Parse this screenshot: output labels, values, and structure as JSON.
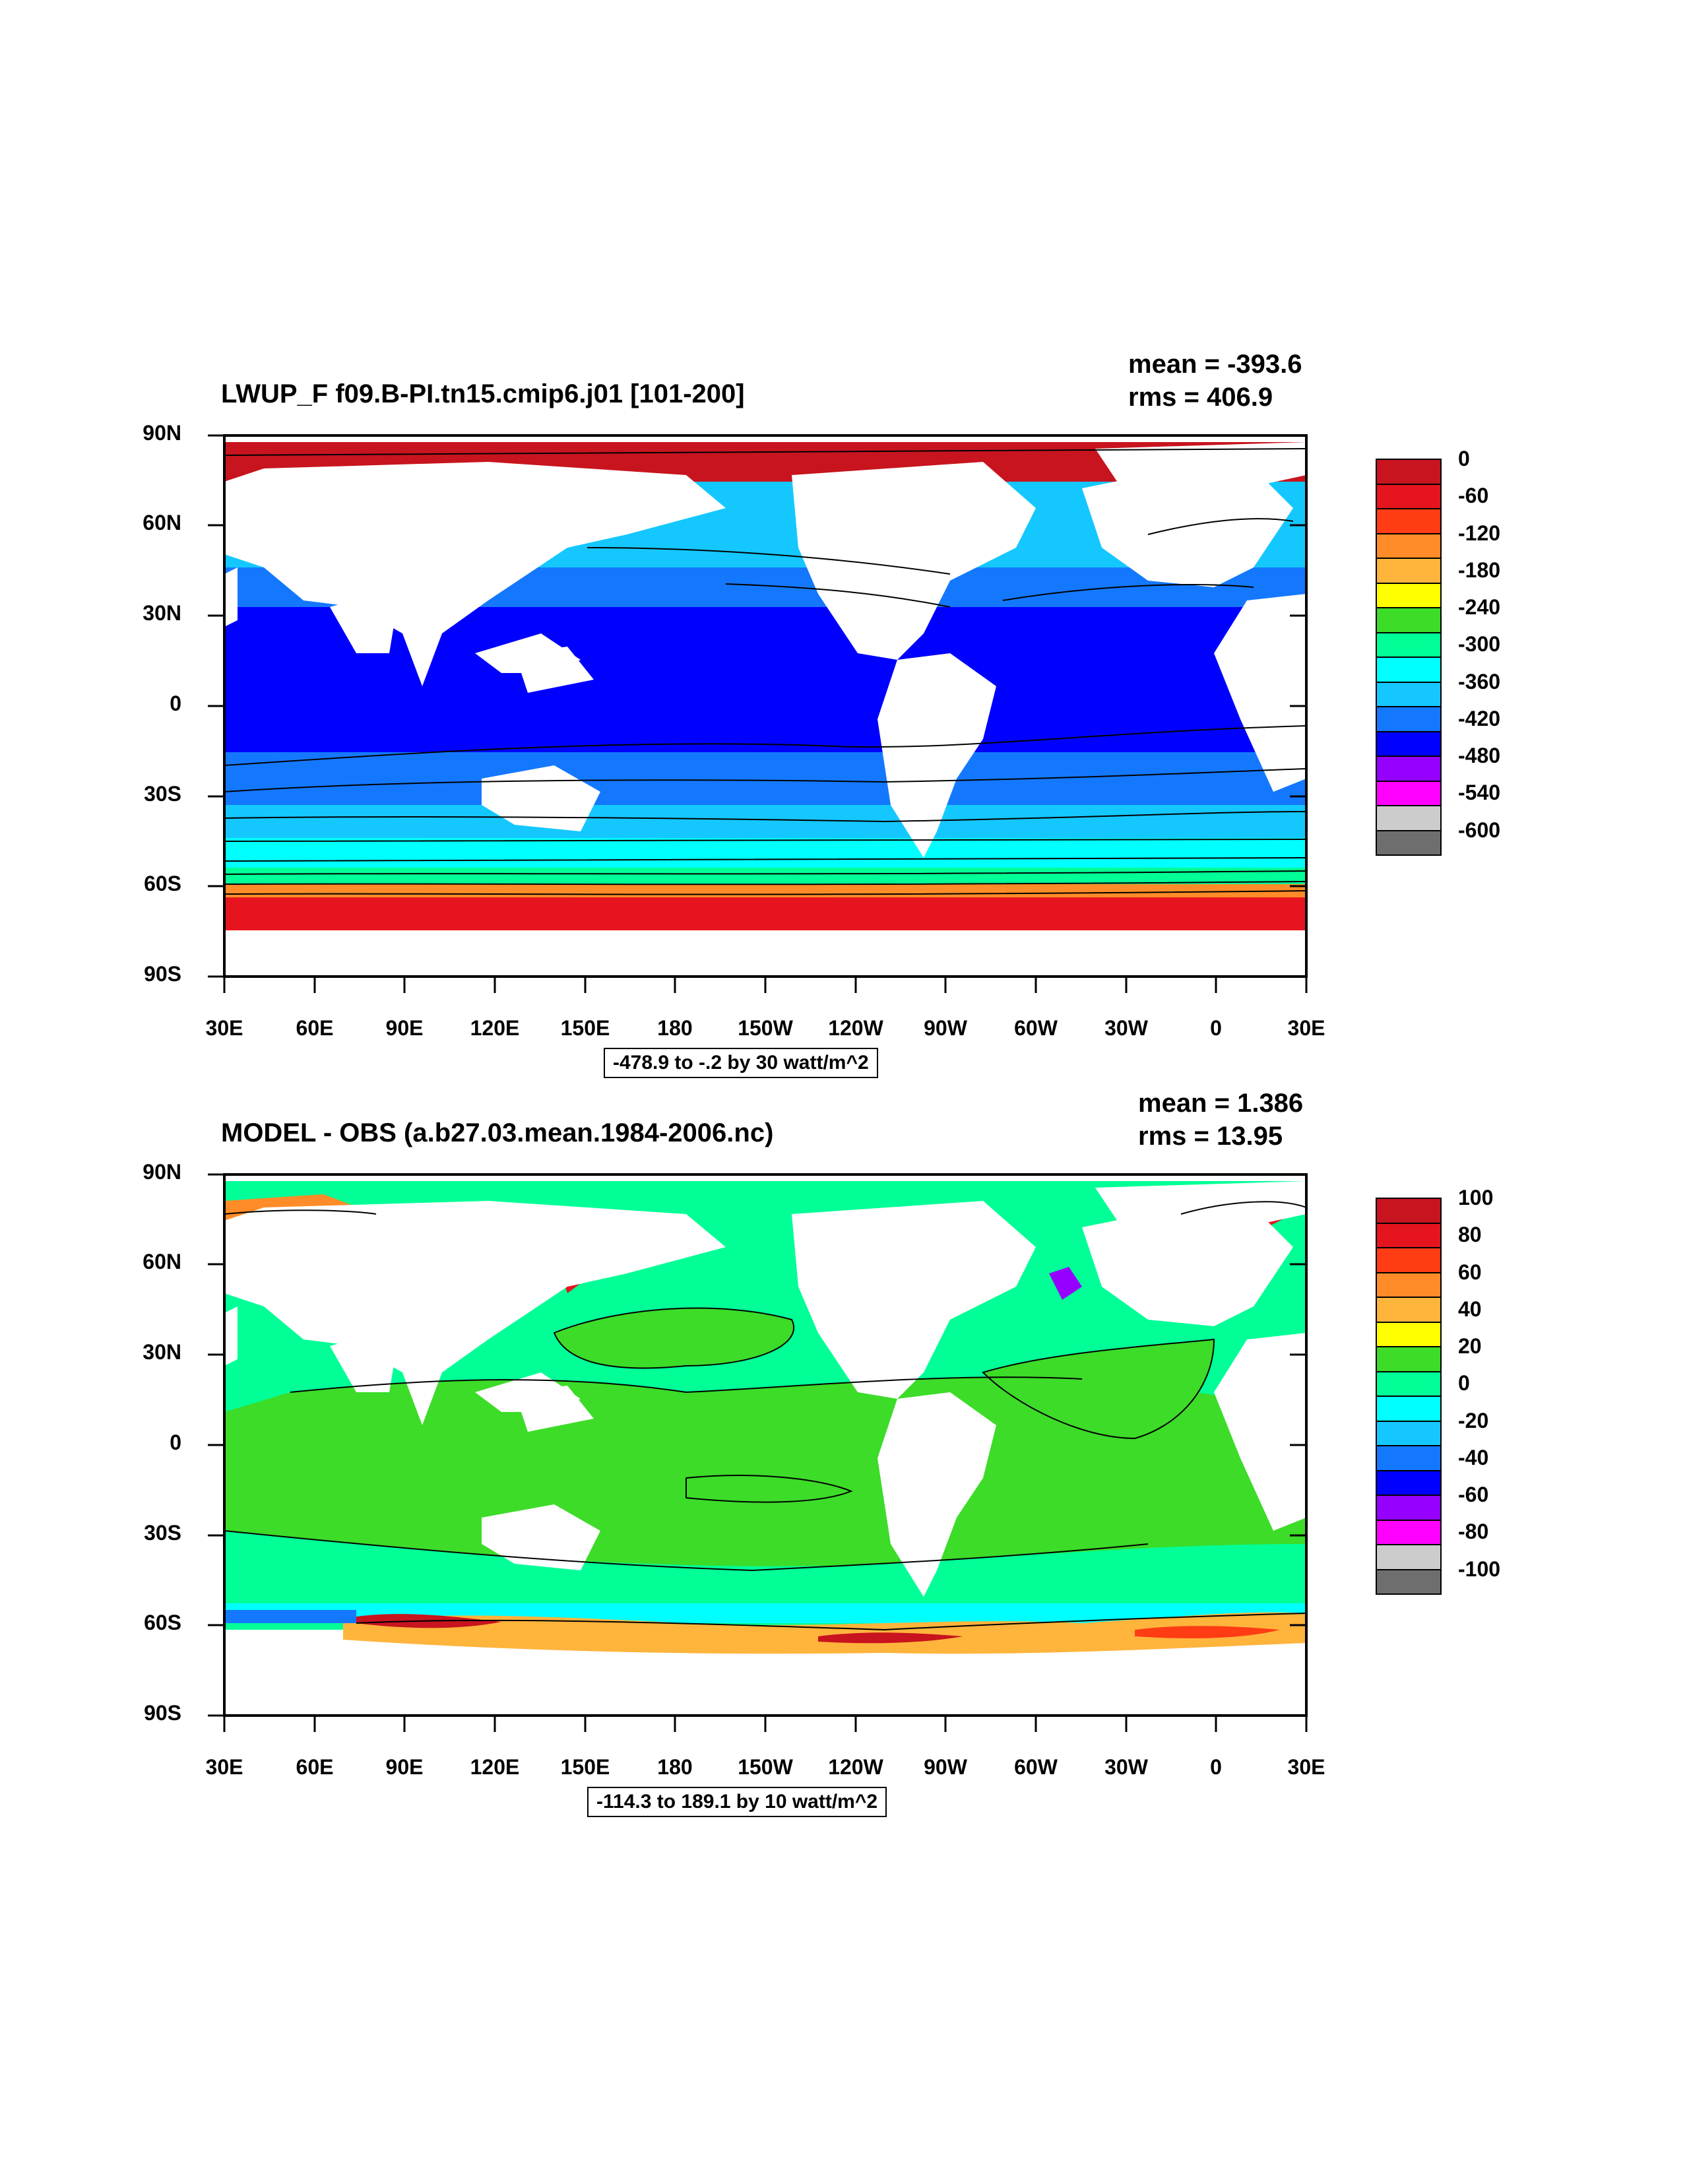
{
  "panels": [
    {
      "title": "LWUP_F f09.B-PI.tn15.cmip6.j01 [101-200]",
      "mean": "mean = -393.6",
      "rms": "rms = 406.9",
      "range": "-478.9 to -.2 by 30 watt/m^2",
      "lat_labels": [
        "90N",
        "60N",
        "30N",
        "0",
        "30S",
        "60S",
        "90S"
      ],
      "lon_labels": [
        "30E",
        "60E",
        "90E",
        "120E",
        "150E",
        "180",
        "150W",
        "120W",
        "90W",
        "60W",
        "30W",
        "0",
        "30E"
      ],
      "colorbar": {
        "labels": [
          "0",
          "-60",
          "-120",
          "-180",
          "-240",
          "-300",
          "-360",
          "-420",
          "-480",
          "-540",
          "-600"
        ],
        "colors": [
          "#c8141e",
          "#e6141e",
          "#ff3c14",
          "#ff8c28",
          "#ffb43c",
          "#ffff00",
          "#3cdc28",
          "#00ff96",
          "#00ffff",
          "#14c8ff",
          "#1478ff",
          "#0000ff",
          "#9600ff",
          "#ff00ff",
          "#cccccc",
          "#6e6e6e"
        ]
      }
    },
    {
      "title": "MODEL - OBS (a.b27.03.mean.1984-2006.nc)",
      "mean": "mean = 1.386",
      "rms": "rms = 13.95",
      "range": "-114.3 to 189.1 by 10 watt/m^2",
      "lat_labels": [
        "90N",
        "60N",
        "30N",
        "0",
        "30S",
        "60S",
        "90S"
      ],
      "lon_labels": [
        "30E",
        "60E",
        "90E",
        "120E",
        "150E",
        "180",
        "150W",
        "120W",
        "90W",
        "60W",
        "30W",
        "0",
        "30E"
      ],
      "colorbar": {
        "labels": [
          "100",
          "80",
          "60",
          "40",
          "20",
          "0",
          "-20",
          "-40",
          "-60",
          "-80",
          "-100"
        ],
        "colors": [
          "#c8141e",
          "#e6141e",
          "#ff3c14",
          "#ff8c28",
          "#ffb43c",
          "#ffff00",
          "#3cdc28",
          "#00ff96",
          "#00ffff",
          "#14c8ff",
          "#1478ff",
          "#0000ff",
          "#9600ff",
          "#ff00ff",
          "#cccccc",
          "#6e6e6e"
        ]
      }
    }
  ]
}
